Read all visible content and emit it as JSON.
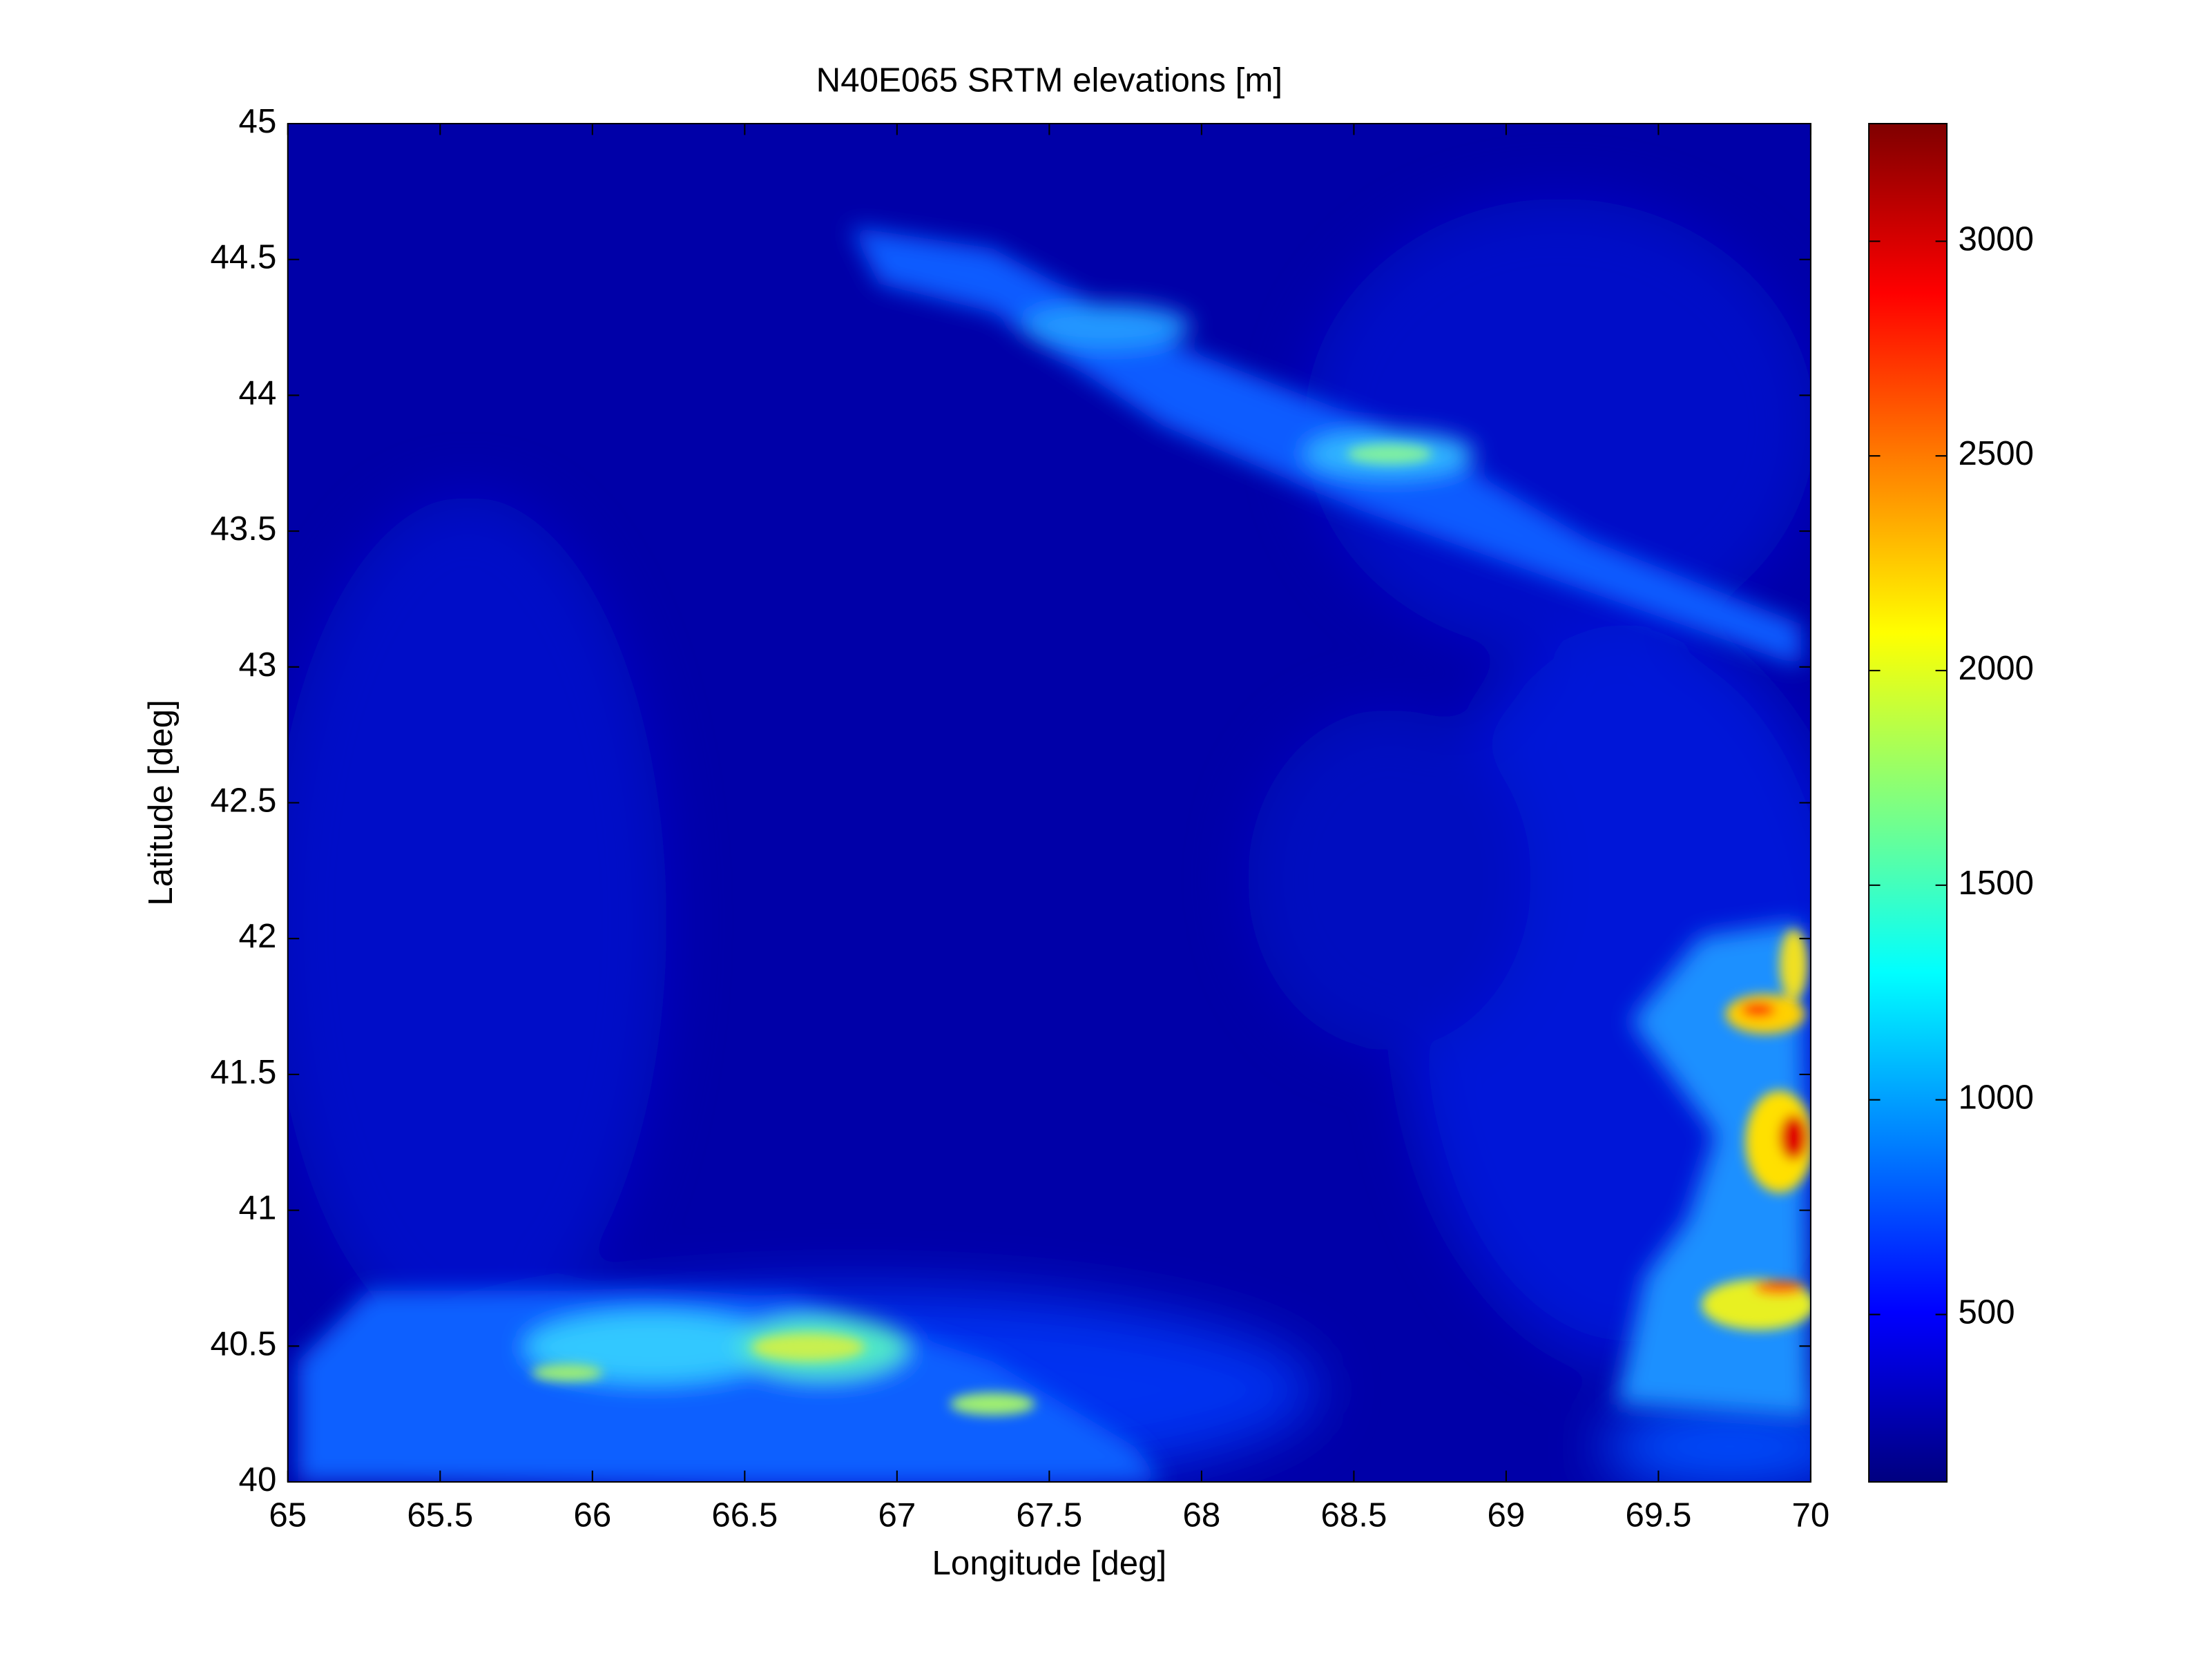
{
  "chart_data": {
    "type": "heatmap",
    "title": "N40E065 SRTM elevations [m]",
    "x_label": "Longitude [deg]",
    "y_label": "Latitude [deg]",
    "xlim": [
      65,
      70
    ],
    "xticks": [
      65,
      65.5,
      66,
      66.5,
      67,
      67.5,
      68,
      68.5,
      69,
      69.5,
      70
    ],
    "ylim": [
      40,
      45
    ],
    "yticks": [
      40,
      40.5,
      41,
      41.5,
      42,
      42.5,
      43,
      43.5,
      44,
      44.5,
      45
    ],
    "colorbar": {
      "colormap": "jet",
      "clim": [
        110,
        3274
      ],
      "ticks": [
        500,
        1000,
        1500,
        2000,
        2500,
        3000
      ]
    }
  }
}
